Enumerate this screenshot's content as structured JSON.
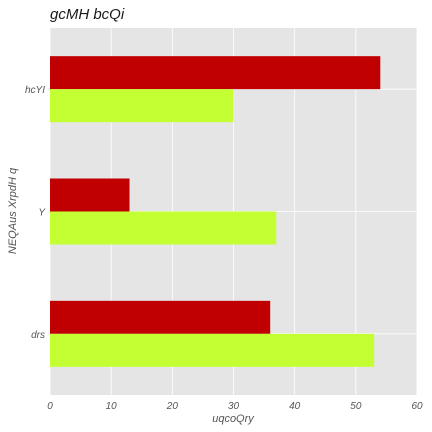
{
  "chart_data": {
    "type": "bar",
    "orientation": "horizontal",
    "title": "gcMH bcQi",
    "xlabel": "uqcoQry",
    "ylabel": "NEQAus XrpdH q",
    "categories": [
      "hcYI",
      "Y",
      "drs"
    ],
    "series": [
      {
        "color": "#c00000",
        "values": [
          54,
          13,
          36
        ]
      },
      {
        "color": "#c4ff33",
        "values": [
          30,
          37,
          53
        ]
      }
    ],
    "xlim": [
      0,
      60
    ],
    "xticks": [
      "0",
      "10",
      "20",
      "30",
      "40",
      "50",
      "60"
    ],
    "grid": true,
    "legend": "none",
    "colors": {
      "panel": "#e5e5e5",
      "grid": "#ffffff"
    }
  }
}
